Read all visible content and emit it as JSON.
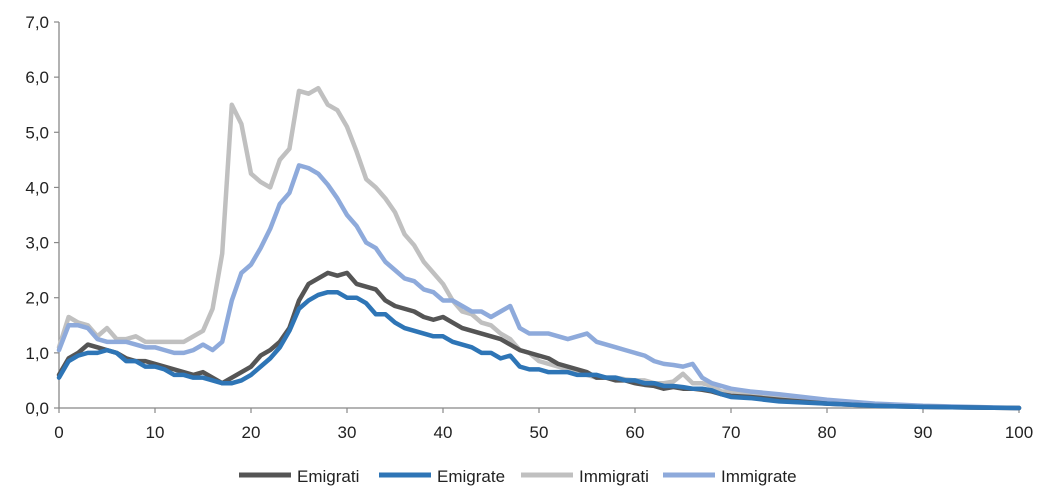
{
  "chart_data": {
    "type": "line",
    "x_ticks": [
      "0",
      "10",
      "20",
      "30",
      "40",
      "50",
      "60",
      "70",
      "80",
      "90",
      "100"
    ],
    "y_ticks": [
      "0,0",
      "1,0",
      "2,0",
      "3,0",
      "4,0",
      "5,0",
      "6,0",
      "7,0"
    ],
    "xlim": [
      0,
      100
    ],
    "ylim": [
      0,
      7
    ],
    "grid": false,
    "legend_position": "bottom",
    "series": [
      {
        "name": "Emigrati",
        "color": "#555555",
        "x": [
          0,
          1,
          2,
          3,
          4,
          5,
          6,
          7,
          8,
          9,
          10,
          11,
          12,
          13,
          14,
          15,
          16,
          17,
          18,
          19,
          20,
          21,
          22,
          23,
          24,
          25,
          26,
          27,
          28,
          29,
          30,
          31,
          32,
          33,
          34,
          35,
          36,
          37,
          38,
          39,
          40,
          41,
          42,
          43,
          44,
          45,
          46,
          47,
          48,
          49,
          50,
          51,
          52,
          53,
          54,
          55,
          56,
          57,
          58,
          59,
          60,
          61,
          62,
          63,
          64,
          65,
          66,
          67,
          68,
          69,
          70,
          72,
          75,
          80,
          85,
          90,
          95,
          100
        ],
        "y": [
          0.6,
          0.9,
          1.0,
          1.15,
          1.1,
          1.05,
          1.0,
          0.9,
          0.85,
          0.85,
          0.8,
          0.75,
          0.7,
          0.65,
          0.6,
          0.65,
          0.55,
          0.45,
          0.55,
          0.65,
          0.75,
          0.95,
          1.05,
          1.2,
          1.45,
          1.95,
          2.25,
          2.35,
          2.45,
          2.4,
          2.45,
          2.25,
          2.2,
          2.15,
          1.95,
          1.85,
          1.8,
          1.75,
          1.65,
          1.6,
          1.65,
          1.55,
          1.45,
          1.4,
          1.35,
          1.3,
          1.25,
          1.15,
          1.05,
          1.0,
          0.95,
          0.9,
          0.8,
          0.75,
          0.7,
          0.65,
          0.55,
          0.55,
          0.5,
          0.5,
          0.45,
          0.42,
          0.4,
          0.35,
          0.38,
          0.35,
          0.35,
          0.33,
          0.3,
          0.25,
          0.22,
          0.2,
          0.15,
          0.08,
          0.04,
          0.02,
          0.01,
          0.0
        ]
      },
      {
        "name": "Emigrate",
        "color": "#2e75b6",
        "x": [
          0,
          1,
          2,
          3,
          4,
          5,
          6,
          7,
          8,
          9,
          10,
          11,
          12,
          13,
          14,
          15,
          16,
          17,
          18,
          19,
          20,
          21,
          22,
          23,
          24,
          25,
          26,
          27,
          28,
          29,
          30,
          31,
          32,
          33,
          34,
          35,
          36,
          37,
          38,
          39,
          40,
          41,
          42,
          43,
          44,
          45,
          46,
          47,
          48,
          49,
          50,
          51,
          52,
          53,
          54,
          55,
          56,
          57,
          58,
          59,
          60,
          61,
          62,
          63,
          64,
          65,
          66,
          67,
          68,
          69,
          70,
          72,
          75,
          80,
          85,
          90,
          95,
          100
        ],
        "y": [
          0.55,
          0.85,
          0.95,
          1.0,
          1.0,
          1.05,
          1.0,
          0.85,
          0.85,
          0.75,
          0.75,
          0.7,
          0.6,
          0.6,
          0.55,
          0.55,
          0.5,
          0.45,
          0.45,
          0.5,
          0.6,
          0.75,
          0.9,
          1.1,
          1.4,
          1.8,
          1.95,
          2.05,
          2.1,
          2.1,
          2.0,
          2.0,
          1.9,
          1.7,
          1.7,
          1.55,
          1.45,
          1.4,
          1.35,
          1.3,
          1.3,
          1.2,
          1.15,
          1.1,
          1.0,
          1.0,
          0.9,
          0.95,
          0.75,
          0.7,
          0.7,
          0.65,
          0.65,
          0.65,
          0.6,
          0.6,
          0.6,
          0.55,
          0.55,
          0.5,
          0.5,
          0.45,
          0.45,
          0.4,
          0.4,
          0.38,
          0.35,
          0.35,
          0.32,
          0.25,
          0.2,
          0.18,
          0.12,
          0.08,
          0.04,
          0.02,
          0.01,
          0.0
        ]
      },
      {
        "name": "Immigrati",
        "color": "#c0c0c0",
        "x": [
          0,
          1,
          2,
          3,
          4,
          5,
          6,
          7,
          8,
          9,
          10,
          11,
          12,
          13,
          14,
          15,
          16,
          17,
          18,
          19,
          20,
          21,
          22,
          23,
          24,
          25,
          26,
          27,
          28,
          29,
          30,
          31,
          32,
          33,
          34,
          35,
          36,
          37,
          38,
          39,
          40,
          41,
          42,
          43,
          44,
          45,
          46,
          47,
          48,
          49,
          50,
          51,
          52,
          53,
          54,
          55,
          56,
          57,
          58,
          59,
          60,
          61,
          62,
          63,
          64,
          65,
          66,
          67,
          68,
          69,
          70,
          72,
          75,
          80,
          85,
          90,
          95,
          100
        ],
        "y": [
          1.1,
          1.65,
          1.55,
          1.5,
          1.3,
          1.45,
          1.25,
          1.25,
          1.3,
          1.2,
          1.2,
          1.2,
          1.2,
          1.2,
          1.3,
          1.4,
          1.8,
          2.8,
          5.5,
          5.15,
          4.25,
          4.1,
          4.0,
          4.5,
          4.7,
          5.75,
          5.7,
          5.8,
          5.5,
          5.4,
          5.1,
          4.65,
          4.15,
          4.0,
          3.8,
          3.55,
          3.15,
          2.95,
          2.65,
          2.45,
          2.25,
          1.95,
          1.75,
          1.7,
          1.55,
          1.5,
          1.35,
          1.25,
          1.05,
          1.0,
          0.85,
          0.8,
          0.75,
          0.7,
          0.65,
          0.6,
          0.55,
          0.55,
          0.55,
          0.52,
          0.5,
          0.5,
          0.45,
          0.45,
          0.48,
          0.62,
          0.45,
          0.45,
          0.4,
          0.3,
          0.3,
          0.25,
          0.2,
          0.1,
          0.06,
          0.03,
          0.01,
          0.0
        ]
      },
      {
        "name": "Immigrate",
        "color": "#8eaadb",
        "x": [
          0,
          1,
          2,
          3,
          4,
          5,
          6,
          7,
          8,
          9,
          10,
          11,
          12,
          13,
          14,
          15,
          16,
          17,
          18,
          19,
          20,
          21,
          22,
          23,
          24,
          25,
          26,
          27,
          28,
          29,
          30,
          31,
          32,
          33,
          34,
          35,
          36,
          37,
          38,
          39,
          40,
          41,
          42,
          43,
          44,
          45,
          46,
          47,
          48,
          49,
          50,
          51,
          52,
          53,
          54,
          55,
          56,
          57,
          58,
          59,
          60,
          61,
          62,
          63,
          64,
          65,
          66,
          67,
          68,
          69,
          70,
          72,
          75,
          80,
          85,
          90,
          95,
          100
        ],
        "y": [
          1.05,
          1.5,
          1.5,
          1.45,
          1.25,
          1.2,
          1.2,
          1.2,
          1.15,
          1.1,
          1.1,
          1.05,
          1.0,
          1.0,
          1.05,
          1.15,
          1.05,
          1.2,
          1.95,
          2.45,
          2.6,
          2.9,
          3.25,
          3.7,
          3.9,
          4.4,
          4.35,
          4.25,
          4.05,
          3.8,
          3.5,
          3.3,
          3.0,
          2.9,
          2.65,
          2.5,
          2.35,
          2.3,
          2.15,
          2.1,
          1.95,
          1.95,
          1.85,
          1.75,
          1.75,
          1.65,
          1.75,
          1.85,
          1.45,
          1.35,
          1.35,
          1.35,
          1.3,
          1.25,
          1.3,
          1.35,
          1.2,
          1.15,
          1.1,
          1.05,
          1.0,
          0.95,
          0.85,
          0.8,
          0.78,
          0.75,
          0.8,
          0.55,
          0.45,
          0.4,
          0.35,
          0.3,
          0.25,
          0.15,
          0.08,
          0.04,
          0.02,
          0.0
        ]
      }
    ]
  }
}
